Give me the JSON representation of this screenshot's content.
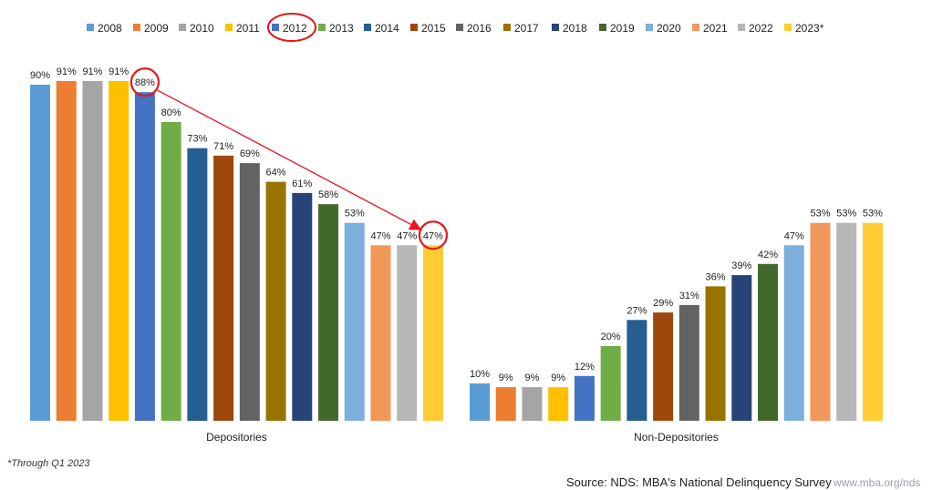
{
  "chart_data": {
    "type": "bar",
    "years": [
      "2008",
      "2009",
      "2010",
      "2011",
      "2012",
      "2013",
      "2014",
      "2015",
      "2016",
      "2017",
      "2018",
      "2019",
      "2020",
      "2021",
      "2022",
      "2023*"
    ],
    "colors": [
      "#5b9bd5",
      "#ed7d31",
      "#a5a5a5",
      "#ffc000",
      "#4472c4",
      "#70ad47",
      "#255e91",
      "#9e480e",
      "#636363",
      "#997300",
      "#264478",
      "#43682b",
      "#7cafdd",
      "#f1975a",
      "#b7b7b7",
      "#ffcd33"
    ],
    "groups": [
      {
        "name": "Depositories",
        "values": [
          90,
          91,
          91,
          91,
          88,
          80,
          73,
          71,
          69,
          64,
          61,
          58,
          53,
          47,
          47,
          47
        ],
        "labels": [
          "90%",
          "91%",
          "91%",
          "91%",
          "88%",
          "80%",
          "73%",
          "71%",
          "69%",
          "64%",
          "61%",
          "58%",
          "53%",
          "47%",
          "47%",
          "47%"
        ]
      },
      {
        "name": "Non-Depositories",
        "values": [
          10,
          9,
          9,
          9,
          12,
          20,
          27,
          29,
          31,
          36,
          39,
          42,
          47,
          53,
          53,
          53
        ],
        "labels": [
          "10%",
          "9%",
          "9%",
          "9%",
          "12%",
          "20%",
          "27%",
          "29%",
          "31%",
          "36%",
          "39%",
          "42%",
          "47%",
          "53%",
          "53%",
          "53%"
        ]
      }
    ],
    "ylim": [
      0,
      100
    ],
    "legend_position": "top",
    "grid": false,
    "annotations": {
      "highlighted_legend_entry": "2012",
      "circled_values": [
        "88%",
        "47%"
      ],
      "arrow": "from 2012 Depositories bar to 2023* Depositories bar",
      "annotation_color": "#e8141b"
    }
  },
  "footnote": "*Through Q1 2023",
  "source": "Source: NDS: MBA's National Delinquency Survey",
  "url": "www.mba.org/nds"
}
